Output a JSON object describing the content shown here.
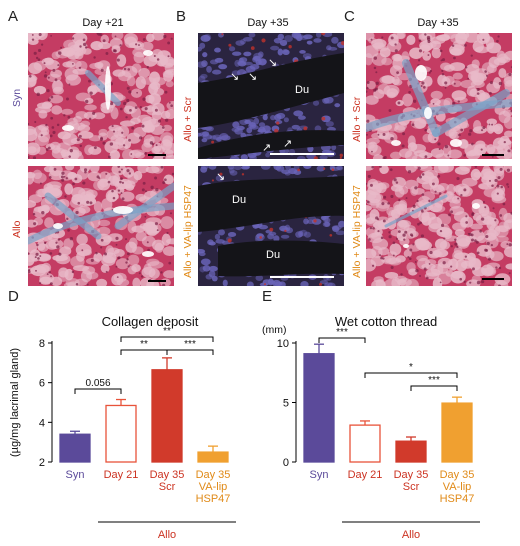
{
  "panels": {
    "A": {
      "letter": "A",
      "day": "Day +21",
      "top_label": "Syn",
      "bottom_label": "Allo"
    },
    "B": {
      "letter": "B",
      "day": "Day +35",
      "top_label": "Allo + Scr",
      "bottom_label": "Allo + VA-lip HSP47",
      "du": "Du"
    },
    "C": {
      "letter": "C",
      "day": "Day +35",
      "top_label": "Allo + Scr",
      "bottom_label": "Allo + VA-lip HSP47"
    },
    "D": {
      "letter": "D"
    },
    "E": {
      "letter": "E"
    }
  },
  "colors": {
    "syn": "#5b4a9a",
    "allo": "#e8533a",
    "scr": "#d13a2b",
    "va": "#f0a030",
    "allo_text": "#cc3322",
    "va_text": "#e08a18",
    "tissue_red": "#c43c63",
    "tissue_pink": "#e8b9c8",
    "collagen_blue": "#7aa3c8",
    "fluor_dark": "#141418",
    "fluor_nuc": "#6a64b8"
  },
  "chart_data": [
    {
      "type": "bar",
      "title": "Collagen deposit",
      "ylabel": "(µg/mg lacrimal gland)",
      "ylim": [
        2,
        8
      ],
      "yticks": [
        "2",
        "4",
        "6",
        "8"
      ],
      "categories": [
        {
          "lines": [
            "Syn"
          ]
        },
        {
          "lines": [
            "Day 21"
          ]
        },
        {
          "lines": [
            "Day 35",
            "Scr"
          ]
        },
        {
          "lines": [
            "Day 35",
            "VA-lip",
            "HSP47"
          ]
        }
      ],
      "values": [
        3.4,
        4.85,
        6.65,
        2.5
      ],
      "errors": [
        0.15,
        0.3,
        0.6,
        0.3
      ],
      "group_label": "Allo",
      "significance": [
        {
          "from": 0,
          "to": 1,
          "label": "0.056"
        },
        {
          "from": 1,
          "to": 2,
          "label": "**"
        },
        {
          "from": 2,
          "to": 3,
          "label": "***"
        },
        {
          "from": 1,
          "to": 3,
          "label": "**"
        }
      ]
    },
    {
      "type": "bar",
      "title": "Wet cotton thread",
      "ylabel": "(mm)",
      "ylim": [
        0,
        10
      ],
      "yticks": [
        "0",
        "5",
        "10"
      ],
      "categories": [
        {
          "lines": [
            "Syn"
          ]
        },
        {
          "lines": [
            "Day 21"
          ]
        },
        {
          "lines": [
            "Day 35",
            "Scr"
          ]
        },
        {
          "lines": [
            "Day 35",
            "VA-lip",
            "HSP47"
          ]
        }
      ],
      "values": [
        9.1,
        3.1,
        1.75,
        4.95
      ],
      "errors": [
        0.8,
        0.35,
        0.35,
        0.5
      ],
      "group_label": "Allo",
      "significance": [
        {
          "from": 0,
          "to": 1,
          "label": "***"
        },
        {
          "from": 2,
          "to": 3,
          "label": "***"
        },
        {
          "from": 1,
          "to": 3,
          "label": "*"
        }
      ]
    }
  ]
}
